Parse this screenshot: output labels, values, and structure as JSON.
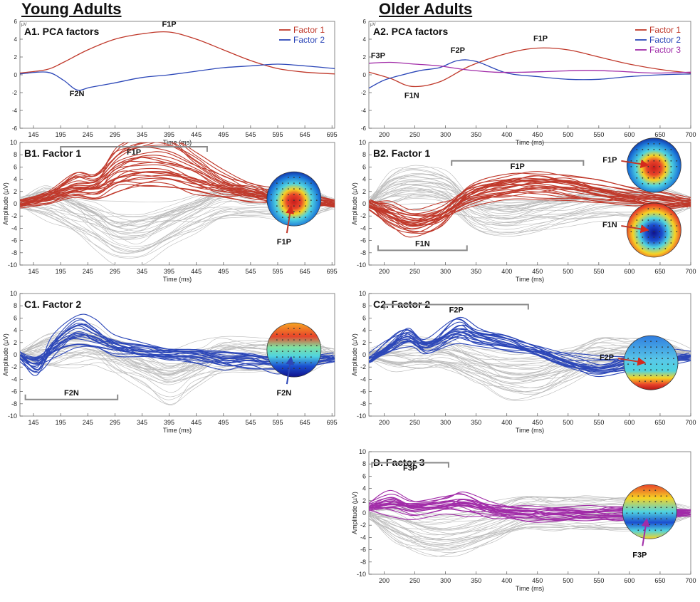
{
  "groups": {
    "young": "Young Adults",
    "older": "Older Adults"
  },
  "colors": {
    "factor1": "#c0392b",
    "factor2": "#2c47b8",
    "factor3": "#a12ca8",
    "grey": "#bdbdbd",
    "axis": "#555555"
  },
  "chart_data": [
    {
      "id": "A1",
      "type": "line",
      "title": "A1. PCA factors",
      "xlabel": "Time (ms)",
      "ylabel": "µV",
      "xlim": [
        120,
        700
      ],
      "ylim": [
        -6,
        6
      ],
      "xticks": [
        145,
        195,
        245,
        295,
        345,
        395,
        445,
        495,
        545,
        595,
        645,
        695
      ],
      "yticks": [
        -6,
        -4,
        -2,
        0,
        2,
        4,
        6
      ],
      "legend": [
        {
          "name": "Factor 1",
          "color": "#c0392b"
        },
        {
          "name": "Factor 2",
          "color": "#2c47b8"
        }
      ],
      "series": [
        {
          "name": "Factor 1",
          "color": "#c0392b",
          "points": [
            [
              120,
              0.2
            ],
            [
              170,
              0.6
            ],
            [
              200,
              1.4
            ],
            [
              245,
              2.8
            ],
            [
              295,
              4.0
            ],
            [
              345,
              4.6
            ],
            [
              395,
              4.8
            ],
            [
              445,
              4.0
            ],
            [
              495,
              2.8
            ],
            [
              545,
              1.6
            ],
            [
              595,
              0.7
            ],
            [
              645,
              0.3
            ],
            [
              700,
              0.1
            ]
          ]
        },
        {
          "name": "Factor 2",
          "color": "#2c47b8",
          "points": [
            [
              120,
              0.1
            ],
            [
              170,
              0.3
            ],
            [
              200,
              -0.6
            ],
            [
              225,
              -1.7
            ],
            [
              250,
              -1.4
            ],
            [
              295,
              -0.9
            ],
            [
              345,
              -0.3
            ],
            [
              395,
              0.0
            ],
            [
              445,
              0.4
            ],
            [
              495,
              0.8
            ],
            [
              545,
              1.0
            ],
            [
              595,
              1.2
            ],
            [
              645,
              1.0
            ],
            [
              700,
              0.7
            ]
          ]
        }
      ],
      "annotations": [
        {
          "text": "F1P",
          "x": 395,
          "y": 5.4
        },
        {
          "text": "F2N",
          "x": 225,
          "y": -2.4
        }
      ]
    },
    {
      "id": "A2",
      "type": "line",
      "title": "A2. PCA factors",
      "xlabel": "Time (ms)",
      "ylabel": "µV",
      "xlim": [
        175,
        700
      ],
      "ylim": [
        -6,
        6
      ],
      "xticks": [
        200,
        250,
        300,
        350,
        400,
        450,
        500,
        550,
        600,
        650,
        700
      ],
      "yticks": [
        -6,
        -4,
        -2,
        0,
        2,
        4,
        6
      ],
      "legend": [
        {
          "name": "Factor 1",
          "color": "#c0392b"
        },
        {
          "name": "Factor 2",
          "color": "#2c47b8"
        },
        {
          "name": "Factor 3",
          "color": "#a12ca8"
        }
      ],
      "series": [
        {
          "name": "Factor 1",
          "color": "#c0392b",
          "points": [
            [
              175,
              0.3
            ],
            [
              210,
              -0.4
            ],
            [
              245,
              -1.3
            ],
            [
              290,
              -0.8
            ],
            [
              340,
              1.0
            ],
            [
              400,
              2.4
            ],
            [
              450,
              3.0
            ],
            [
              500,
              2.8
            ],
            [
              550,
              2.0
            ],
            [
              600,
              1.2
            ],
            [
              650,
              0.6
            ],
            [
              700,
              0.2
            ]
          ]
        },
        {
          "name": "Factor 2",
          "color": "#2c47b8",
          "points": [
            [
              175,
              -1.5
            ],
            [
              200,
              -0.6
            ],
            [
              230,
              0.0
            ],
            [
              260,
              0.5
            ],
            [
              290,
              0.8
            ],
            [
              320,
              1.6
            ],
            [
              350,
              1.5
            ],
            [
              400,
              0.2
            ],
            [
              450,
              -0.2
            ],
            [
              500,
              -0.5
            ],
            [
              550,
              -0.5
            ],
            [
              600,
              -0.2
            ],
            [
              650,
              0.0
            ],
            [
              700,
              0.1
            ]
          ]
        },
        {
          "name": "Factor 3",
          "color": "#a12ca8",
          "points": [
            [
              175,
              1.3
            ],
            [
              210,
              1.4
            ],
            [
              250,
              1.2
            ],
            [
              290,
              1.0
            ],
            [
              330,
              0.6
            ],
            [
              380,
              0.3
            ],
            [
              430,
              0.3
            ],
            [
              480,
              0.4
            ],
            [
              530,
              0.5
            ],
            [
              580,
              0.4
            ],
            [
              640,
              0.2
            ],
            [
              700,
              0.3
            ]
          ]
        }
      ],
      "annotations": [
        {
          "text": "F1P",
          "x": 455,
          "y": 3.8
        },
        {
          "text": "F2P",
          "x": 320,
          "y": 2.5
        },
        {
          "text": "F3P",
          "x": 190,
          "y": 1.9
        },
        {
          "text": "F1N",
          "x": 245,
          "y": -2.6
        }
      ]
    },
    {
      "id": "B1",
      "type": "line",
      "title": "B1. Factor 1",
      "xlabel": "Time (ms)",
      "ylabel": "Amplitude (µV)",
      "xlim": [
        120,
        700
      ],
      "ylim": [
        -10,
        10
      ],
      "xticks": [
        145,
        195,
        245,
        295,
        345,
        395,
        445,
        495,
        545,
        595,
        645,
        695
      ],
      "yticks": [
        -10,
        -8,
        -6,
        -4,
        -2,
        0,
        2,
        4,
        6,
        8,
        10
      ],
      "highlight_color": "#c0392b",
      "highlight_count": 26,
      "grey_count": 34,
      "highlight_template": [
        [
          120,
          0
        ],
        [
          170,
          1
        ],
        [
          220,
          3
        ],
        [
          260,
          3
        ],
        [
          300,
          6
        ],
        [
          345,
          7
        ],
        [
          395,
          7
        ],
        [
          445,
          5
        ],
        [
          495,
          3
        ],
        [
          545,
          2
        ],
        [
          595,
          1
        ],
        [
          645,
          0.5
        ],
        [
          700,
          0
        ]
      ],
      "grey_template": [
        [
          120,
          0
        ],
        [
          170,
          0
        ],
        [
          220,
          -1
        ],
        [
          260,
          -2
        ],
        [
          300,
          -3
        ],
        [
          345,
          -3
        ],
        [
          395,
          -2
        ],
        [
          445,
          -1
        ],
        [
          495,
          0
        ],
        [
          545,
          0
        ],
        [
          595,
          0
        ],
        [
          645,
          0
        ],
        [
          700,
          0
        ]
      ],
      "brackets": [
        {
          "label": "F1P",
          "x1": 195,
          "x2": 465,
          "y": 9.3,
          "dir": "down"
        }
      ],
      "topo": {
        "center_x": 625,
        "center_y": 0.8,
        "scalp": "central-red",
        "arrows": [
          {
            "label": "F1P",
            "color": "#c0392b",
            "from": "below"
          }
        ]
      }
    },
    {
      "id": "B2",
      "type": "line",
      "title": "B2. Factor 1",
      "xlabel": "Time (ms)",
      "ylabel": "Amplitude (µV)",
      "xlim": [
        175,
        700
      ],
      "ylim": [
        -10,
        10
      ],
      "xticks": [
        200,
        250,
        300,
        350,
        400,
        450,
        500,
        550,
        600,
        650,
        700
      ],
      "yticks": [
        -10,
        -8,
        -6,
        -4,
        -2,
        0,
        2,
        4,
        6,
        8,
        10
      ],
      "highlight_color": "#c0392b",
      "highlight_count": 26,
      "grey_count": 34,
      "highlight_template": [
        [
          175,
          0
        ],
        [
          210,
          -1.5
        ],
        [
          245,
          -3
        ],
        [
          290,
          -2
        ],
        [
          340,
          1.5
        ],
        [
          400,
          2.8
        ],
        [
          450,
          3.2
        ],
        [
          500,
          3
        ],
        [
          550,
          2
        ],
        [
          600,
          1.2
        ],
        [
          650,
          0.6
        ],
        [
          700,
          0.2
        ]
      ],
      "grey_template": [
        [
          175,
          0
        ],
        [
          210,
          1
        ],
        [
          250,
          1.5
        ],
        [
          300,
          1
        ],
        [
          350,
          -1
        ],
        [
          400,
          -1.5
        ],
        [
          450,
          -1
        ],
        [
          500,
          -0.5
        ],
        [
          550,
          0
        ],
        [
          600,
          0
        ],
        [
          650,
          0
        ],
        [
          700,
          0
        ]
      ],
      "brackets": [
        {
          "label": "F1P",
          "x1": 310,
          "x2": 525,
          "y": 7,
          "dir": "down"
        },
        {
          "label": "F1N",
          "x1": 190,
          "x2": 335,
          "y": -7.6,
          "dir": "up"
        }
      ],
      "topo": {
        "center_x": 640,
        "center_y": 6.3,
        "scalp": "central-red",
        "center_x2": 640,
        "center_y2": -4.3,
        "scalp2": "central-blue",
        "arrows": [
          {
            "label": "F1P",
            "color": "#c0392b",
            "from": "left"
          },
          {
            "label": "F1N",
            "color": "#c0392b",
            "from": "left"
          }
        ]
      }
    },
    {
      "id": "C1",
      "type": "line",
      "title": "C1. Factor 2",
      "xlabel": "Time (ms)",
      "ylabel": "Amplitude (µV)",
      "xlim": [
        120,
        700
      ],
      "ylim": [
        -10,
        10
      ],
      "xticks": [
        145,
        195,
        245,
        295,
        345,
        395,
        445,
        495,
        545,
        595,
        645,
        695
      ],
      "yticks": [
        -10,
        -8,
        -6,
        -4,
        -2,
        0,
        2,
        4,
        6,
        8,
        10
      ],
      "highlight_color": "#2c47b8",
      "highlight_count": 20,
      "grey_count": 34,
      "highlight_template": [
        [
          120,
          0
        ],
        [
          150,
          -2
        ],
        [
          185,
          2
        ],
        [
          225,
          5
        ],
        [
          260,
          4
        ],
        [
          295,
          2
        ],
        [
          345,
          1
        ],
        [
          395,
          0.5
        ],
        [
          445,
          0
        ],
        [
          495,
          -1
        ],
        [
          545,
          -1
        ],
        [
          595,
          -1.5
        ],
        [
          645,
          -1
        ],
        [
          700,
          -0.5
        ]
      ],
      "grey_template": [
        [
          120,
          0
        ],
        [
          170,
          0.5
        ],
        [
          220,
          1
        ],
        [
          260,
          1
        ],
        [
          300,
          0
        ],
        [
          345,
          -1
        ],
        [
          395,
          -2
        ],
        [
          445,
          -1
        ],
        [
          495,
          0
        ],
        [
          545,
          0
        ],
        [
          595,
          0
        ],
        [
          645,
          0
        ],
        [
          700,
          0
        ]
      ],
      "brackets": [
        {
          "label": "F2N",
          "x1": 130,
          "x2": 300,
          "y": -7.3,
          "dir": "up"
        }
      ],
      "topo": {
        "center_x": 625,
        "center_y": 0.8,
        "scalp": "frontal-red-posterior-blue",
        "arrows": [
          {
            "label": "F2N",
            "color": "#2c47b8",
            "from": "below"
          }
        ]
      }
    },
    {
      "id": "C2",
      "type": "line",
      "title": "C2. Factor 2",
      "xlabel": "Time (ms)",
      "ylabel": "Amplitude (µV)",
      "xlim": [
        175,
        700
      ],
      "ylim": [
        -10,
        10
      ],
      "xticks": [
        200,
        250,
        300,
        350,
        400,
        450,
        500,
        550,
        600,
        650,
        700
      ],
      "yticks": [
        -10,
        -8,
        -6,
        -4,
        -2,
        0,
        2,
        4,
        6,
        8,
        10
      ],
      "highlight_color": "#2c47b8",
      "highlight_count": 20,
      "grey_count": 34,
      "highlight_template": [
        [
          175,
          -1
        ],
        [
          205,
          1
        ],
        [
          240,
          3
        ],
        [
          270,
          1.5
        ],
        [
          320,
          4
        ],
        [
          350,
          3
        ],
        [
          400,
          2
        ],
        [
          450,
          0.5
        ],
        [
          500,
          -1
        ],
        [
          550,
          -2
        ],
        [
          600,
          -1.2
        ],
        [
          650,
          -0.6
        ],
        [
          700,
          -0.2
        ]
      ],
      "grey_template": [
        [
          175,
          0
        ],
        [
          220,
          0
        ],
        [
          260,
          0
        ],
        [
          300,
          0
        ],
        [
          350,
          -1
        ],
        [
          400,
          -2
        ],
        [
          450,
          -2
        ],
        [
          500,
          -1
        ],
        [
          550,
          0
        ],
        [
          600,
          0
        ],
        [
          650,
          0
        ],
        [
          700,
          0
        ]
      ],
      "brackets": [
        {
          "label": "F2P",
          "x1": 200,
          "x2": 435,
          "y": 8.2,
          "dir": "down"
        }
      ],
      "topo": {
        "center_x": 635,
        "center_y": -1.3,
        "scalp": "posterior-red",
        "arrows": [
          {
            "label": "F2P",
            "color": "#c0392b",
            "from": "left"
          }
        ]
      }
    },
    {
      "id": "D",
      "type": "line",
      "title": "D. Factor 3",
      "xlabel": "Time (ms)",
      "ylabel": "Amplitude (µV)",
      "xlim": [
        175,
        700
      ],
      "ylim": [
        -10,
        10
      ],
      "xticks": [
        200,
        250,
        300,
        350,
        400,
        450,
        500,
        550,
        600,
        650,
        700
      ],
      "yticks": [
        -10,
        -8,
        -6,
        -4,
        -2,
        0,
        2,
        4,
        6,
        8,
        10
      ],
      "highlight_color": "#a12ca8",
      "highlight_count": 22,
      "grey_count": 34,
      "highlight_template": [
        [
          175,
          1
        ],
        [
          210,
          2
        ],
        [
          250,
          1
        ],
        [
          300,
          1.5
        ],
        [
          330,
          2
        ],
        [
          380,
          0.5
        ],
        [
          430,
          0
        ],
        [
          480,
          0
        ],
        [
          530,
          0
        ],
        [
          580,
          0
        ],
        [
          640,
          0
        ],
        [
          700,
          0
        ]
      ],
      "grey_template": [
        [
          175,
          0
        ],
        [
          220,
          -1
        ],
        [
          270,
          -2
        ],
        [
          320,
          -2
        ],
        [
          380,
          -1
        ],
        [
          430,
          0
        ],
        [
          480,
          0
        ],
        [
          530,
          0
        ],
        [
          580,
          0
        ],
        [
          640,
          0
        ],
        [
          700,
          0
        ]
      ],
      "brackets": [
        {
          "label": "F3P",
          "x1": 180,
          "x2": 305,
          "y": 8.2,
          "dir": "down"
        }
      ],
      "topo": {
        "center_x": 633,
        "center_y": 0.2,
        "scalp": "frontal-red",
        "arrows": [
          {
            "label": "F3P",
            "color": "#a12ca8",
            "from": "below"
          }
        ]
      }
    }
  ]
}
